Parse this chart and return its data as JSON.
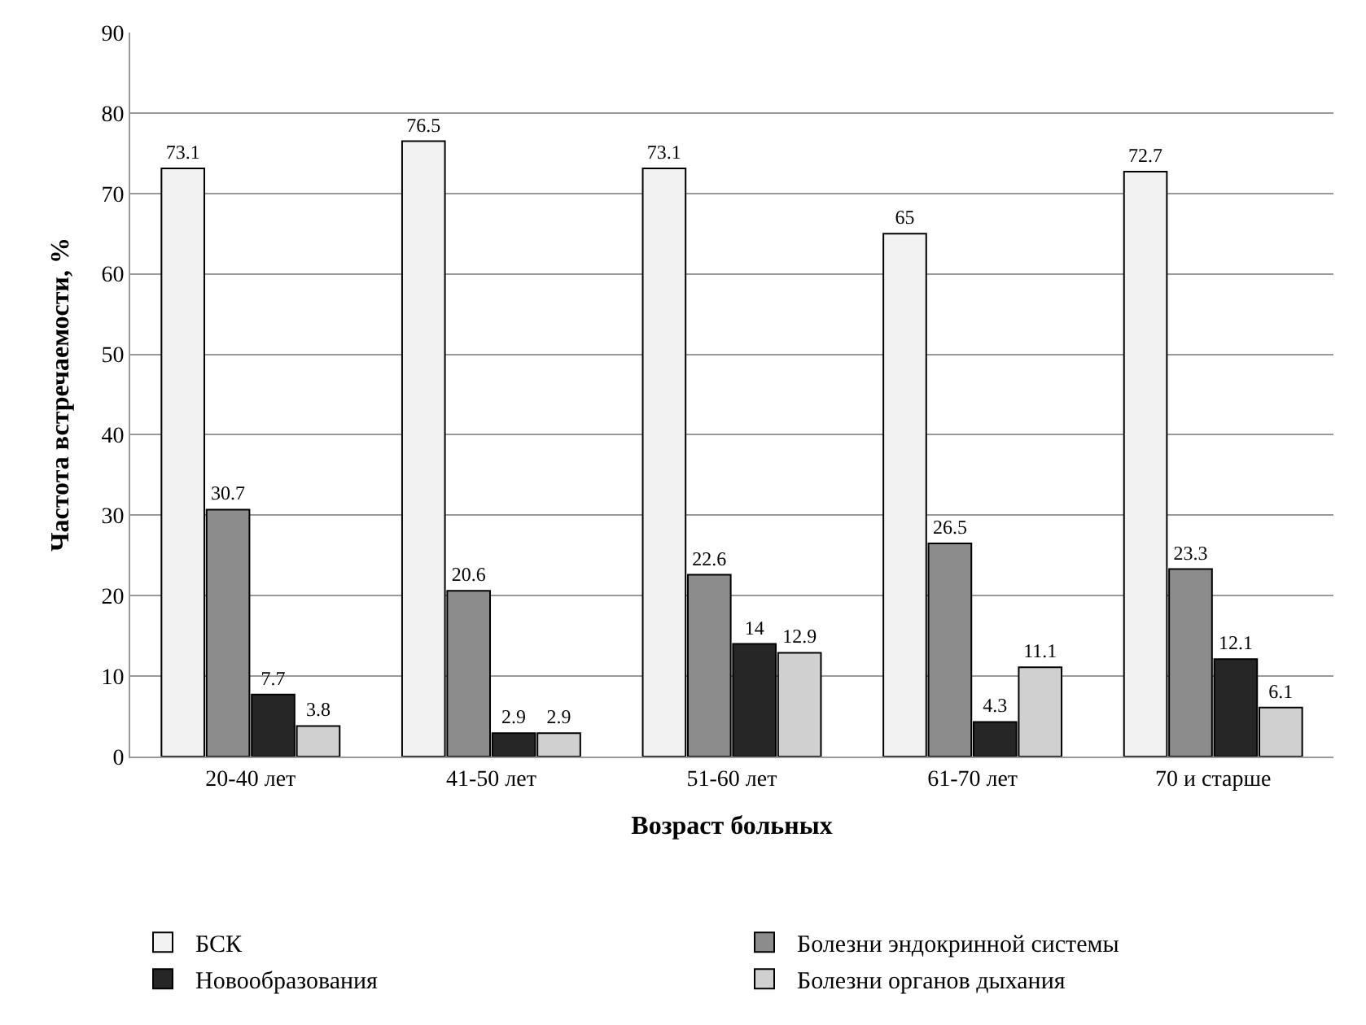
{
  "chart_data": {
    "type": "bar",
    "xlabel": "Возраст больных",
    "ylabel": "Частота встречаемости, %",
    "categories": [
      "20-40 лет",
      "41-50 лет",
      "51-60 лет",
      "61-70 лет",
      "70 и старше"
    ],
    "series": [
      {
        "name": "БСК",
        "color": "#f2f2f2",
        "values": [
          73.1,
          76.5,
          73.1,
          65,
          72.7
        ]
      },
      {
        "name": "Болезни эндокринной системы",
        "color": "#8c8c8c",
        "values": [
          30.7,
          20.6,
          22.6,
          26.5,
          23.3
        ]
      },
      {
        "name": "Новообразования",
        "color": "#262626",
        "values": [
          7.7,
          2.9,
          14,
          4.3,
          12.1
        ]
      },
      {
        "name": "Болезни органов дыхания",
        "color": "#d0d0d0",
        "values": [
          3.8,
          2.9,
          12.9,
          11.1,
          6.1
        ]
      }
    ],
    "ylim": [
      0,
      90
    ],
    "yticks": [
      0,
      10,
      20,
      30,
      40,
      50,
      60,
      70,
      80,
      90
    ],
    "grid": "y",
    "legend": "bottom",
    "data_labels": true
  }
}
